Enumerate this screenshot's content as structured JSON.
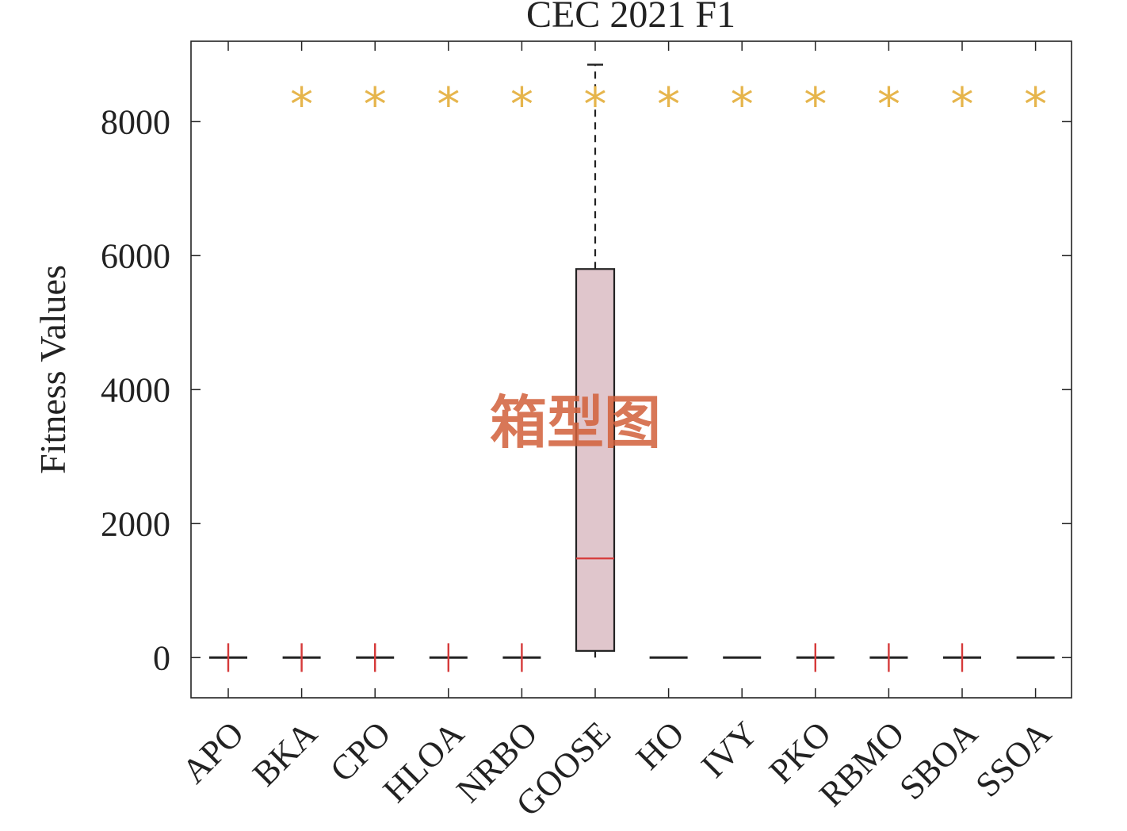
{
  "chart_data": {
    "type": "box",
    "title": "CEC 2021 F1",
    "xlabel": "",
    "ylabel": "Fitness Values",
    "ylim": [
      -600,
      9200
    ],
    "yticks": [
      0,
      2000,
      4000,
      6000,
      8000
    ],
    "grid": false,
    "categories": [
      "APO",
      "BKA",
      "CPO",
      "HLOA",
      "NRBO",
      "GOOSE",
      "HO",
      "IVY",
      "PKO",
      "RBMO",
      "SBOA",
      "SSOA"
    ],
    "series": [
      {
        "category": "APO",
        "min": 0,
        "q1": 0,
        "median": 0,
        "q3": 0,
        "max": 0,
        "outliers": [
          0
        ]
      },
      {
        "category": "BKA",
        "min": 0,
        "q1": 0,
        "median": 0,
        "q3": 0,
        "max": 0,
        "outliers": [
          0,
          8450
        ]
      },
      {
        "category": "CPO",
        "min": 0,
        "q1": 0,
        "median": 0,
        "q3": 0,
        "max": 0,
        "outliers": [
          0,
          8450
        ]
      },
      {
        "category": "HLOA",
        "min": 0,
        "q1": 0,
        "median": 0,
        "q3": 0,
        "max": 0,
        "outliers": [
          0,
          8450
        ]
      },
      {
        "category": "NRBO",
        "min": 0,
        "q1": 0,
        "median": 0,
        "q3": 0,
        "max": 0,
        "outliers": [
          0,
          8450
        ]
      },
      {
        "category": "GOOSE",
        "min": 0,
        "q1": 100,
        "median": 1480,
        "q3": 5800,
        "max": 8850,
        "outliers": [
          8450
        ]
      },
      {
        "category": "HO",
        "min": 0,
        "q1": 0,
        "median": 0,
        "q3": 0,
        "max": 0,
        "outliers": [
          8450
        ]
      },
      {
        "category": "IVY",
        "min": 0,
        "q1": 0,
        "median": 0,
        "q3": 0,
        "max": 0,
        "outliers": [
          8450
        ]
      },
      {
        "category": "PKO",
        "min": 0,
        "q1": 0,
        "median": 0,
        "q3": 0,
        "max": 0,
        "outliers": [
          0,
          8450
        ]
      },
      {
        "category": "RBMO",
        "min": 0,
        "q1": 0,
        "median": 0,
        "q3": 0,
        "max": 0,
        "outliers": [
          0,
          8450
        ]
      },
      {
        "category": "SBOA",
        "min": 0,
        "q1": 0,
        "median": 0,
        "q3": 0,
        "max": 0,
        "outliers": [
          0,
          8450
        ]
      },
      {
        "category": "SSOA",
        "min": 0,
        "q1": 0,
        "median": 0,
        "q3": 0,
        "max": 0,
        "outliers": [
          8450
        ]
      }
    ],
    "outlier_marker": "*",
    "outlier_color": "#e6b54c",
    "box_fill": "#e0c6cc",
    "median_color": "#d63a3a"
  },
  "watermark": "箱型图"
}
